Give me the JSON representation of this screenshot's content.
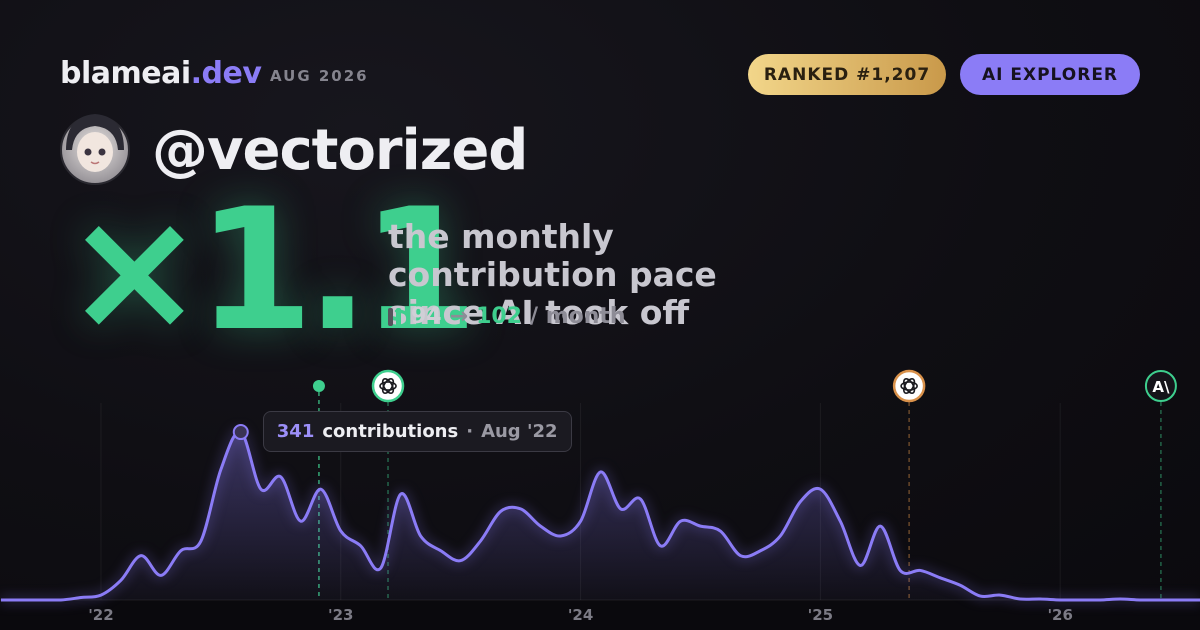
{
  "brand": {
    "name": "blameai",
    "tld": ".dev",
    "date": "AUG 2026"
  },
  "badges": [
    "RANKED #1,207",
    "AI EXPLORER"
  ],
  "user": {
    "handle": "@vectorized"
  },
  "multiplier": "×1.1",
  "headline": "the monthly contribution pace since AI took off",
  "pace": {
    "before": 94,
    "arrow": "→",
    "after": 102,
    "unit": "/ month"
  },
  "chart_data": {
    "type": "area",
    "x": [
      2021.583,
      2021.667,
      2021.75,
      2021.833,
      2021.917,
      2022,
      2022.083,
      2022.167,
      2022.25,
      2022.333,
      2022.417,
      2022.5,
      2022.583,
      2022.667,
      2022.75,
      2022.833,
      2022.917,
      2023,
      2023.083,
      2023.167,
      2023.25,
      2023.333,
      2023.417,
      2023.5,
      2023.583,
      2023.667,
      2023.75,
      2023.833,
      2023.917,
      2024,
      2024.083,
      2024.167,
      2024.25,
      2024.333,
      2024.417,
      2024.5,
      2024.583,
      2024.667,
      2024.75,
      2024.833,
      2024.917,
      2025,
      2025.083,
      2025.167,
      2025.25,
      2025.333,
      2025.417,
      2025.5,
      2025.583,
      2025.667,
      2025.75,
      2025.833,
      2025.917,
      2026,
      2026.083,
      2026.167,
      2026.25,
      2026.333,
      2026.417,
      2026.5,
      2026.583
    ],
    "series": [
      {
        "color": "#8b7cf6",
        "values": [
          0,
          0,
          0,
          0,
          5,
          10,
          40,
          90,
          50,
          100,
          120,
          265,
          341,
          225,
          250,
          160,
          225,
          140,
          110,
          65,
          215,
          130,
          100,
          80,
          120,
          180,
          185,
          150,
          130,
          160,
          260,
          185,
          205,
          110,
          160,
          150,
          140,
          90,
          100,
          130,
          200,
          225,
          160,
          70,
          150,
          60,
          60,
          45,
          30,
          8,
          10,
          2,
          2,
          0,
          0,
          0,
          2,
          0,
          0,
          0,
          0
        ]
      }
    ],
    "xlim": [
      2021.579,
      2026.583
    ],
    "xticks": [
      {
        "value": 2022,
        "label": "'22"
      },
      {
        "value": 2023,
        "label": "'23"
      },
      {
        "value": 2024,
        "label": "'24"
      },
      {
        "value": 2025,
        "label": "'25"
      },
      {
        "value": 2026,
        "label": "'26"
      }
    ],
    "ylim": [
      0,
      400
    ],
    "grid": true,
    "events": [
      {
        "x": 2022.909,
        "marker": "dot",
        "color": "#3ecf8e"
      },
      {
        "x": 2023.197,
        "marker": "openai",
        "color": "#3ecf8e"
      },
      {
        "x": 2025.37,
        "marker": "openai",
        "color": "#d9914a"
      },
      {
        "x": 2026.42,
        "marker": "anthropic",
        "color": "#3ecf8e",
        "label": "A\\"
      }
    ],
    "tooltip": {
      "x": 2022.583,
      "unit": "contributions",
      "separator": "·",
      "date": "Aug '22"
    }
  }
}
